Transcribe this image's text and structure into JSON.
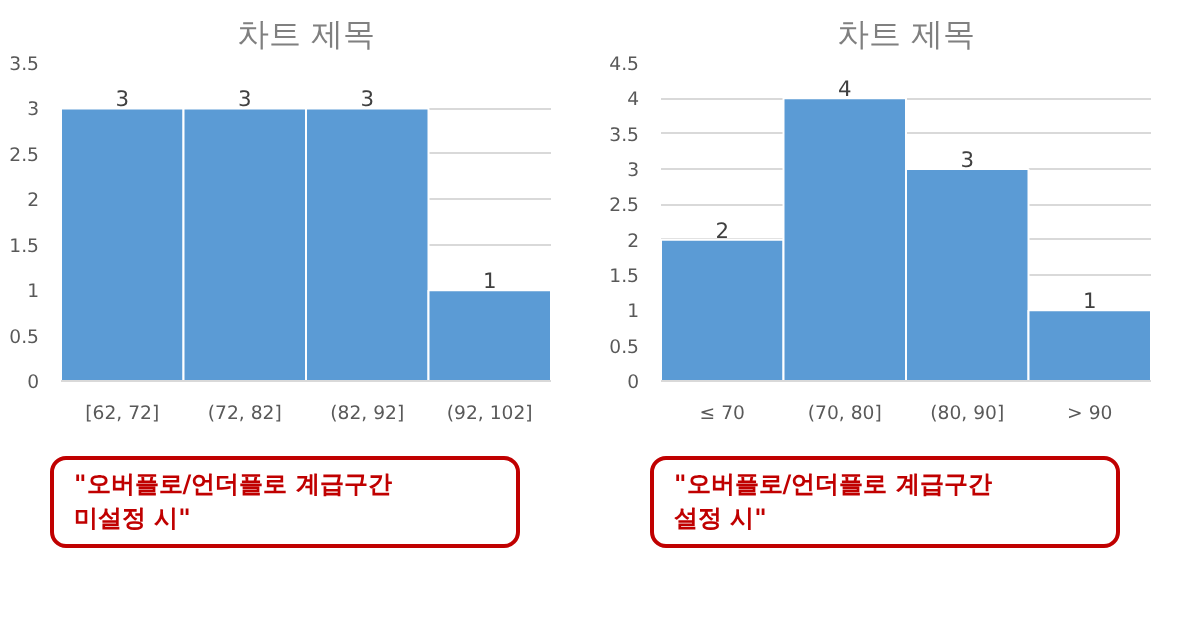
{
  "chart_data": [
    {
      "type": "bar",
      "title": "차트 제목",
      "categories": [
        "[62, 72]",
        "(72, 82]",
        "(82, 92]",
        "(92, 102]"
      ],
      "values": [
        3,
        3,
        3,
        1
      ],
      "color": "#5b9bd5",
      "ylim": [
        0,
        3.5
      ],
      "yticks": [
        0,
        0.5,
        1,
        1.5,
        2,
        2.5,
        3,
        3.5
      ],
      "grid": "y",
      "data_labels": true,
      "annotations": [
        "\"오버플로/언더플로 계급구간\n미설정 시\""
      ]
    },
    {
      "type": "bar",
      "title": "차트 제목",
      "categories": [
        "≤ 70",
        "(70, 80]",
        "(80, 90]",
        "> 90"
      ],
      "values": [
        2,
        4,
        3,
        1
      ],
      "color": "#5b9bd5",
      "ylim": [
        0,
        4.5
      ],
      "yticks": [
        0,
        0.5,
        1,
        1.5,
        2,
        2.5,
        3,
        3.5,
        4,
        4.5
      ],
      "grid": "y",
      "data_labels": true,
      "annotations": [
        "\"오버플로/언더플로 계급구간\n설정 시\""
      ]
    }
  ]
}
